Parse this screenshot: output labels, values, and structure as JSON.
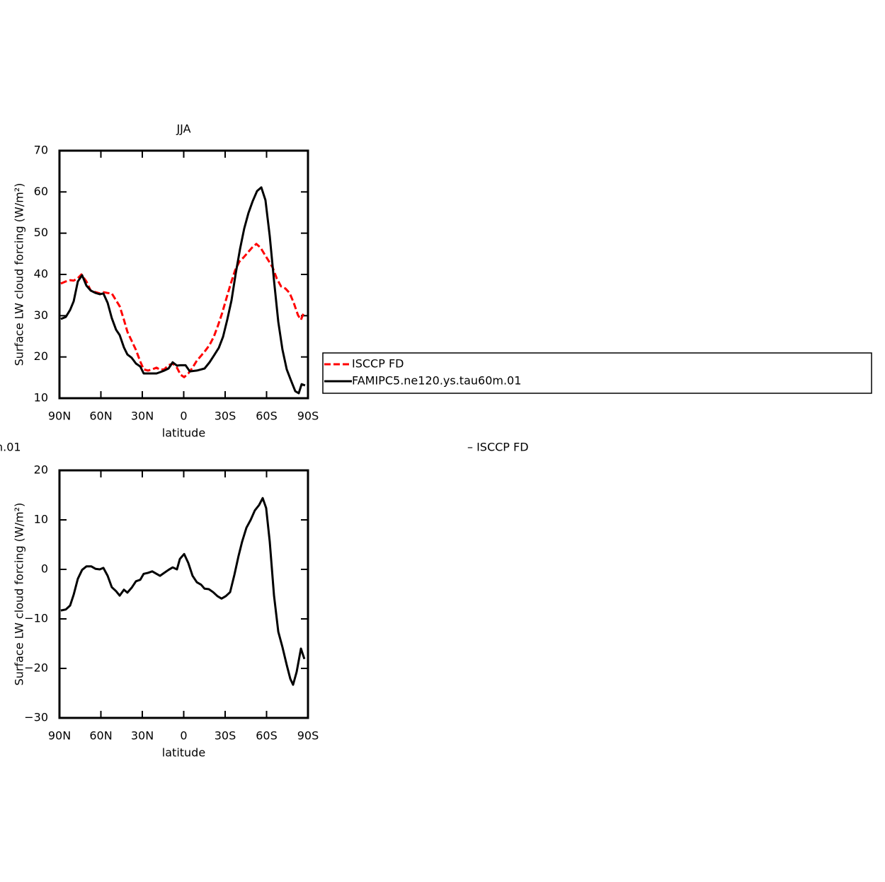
{
  "chart_data": [
    {
      "type": "line",
      "title": "JJA",
      "x_label": "latitude",
      "y_label": "Surface LW cloud forcing (W/m²)",
      "xlim": [
        90,
        -90
      ],
      "ylim": [
        10,
        70
      ],
      "xticks": [
        {
          "value": 90,
          "label": "90N"
        },
        {
          "value": 60,
          "label": "60N"
        },
        {
          "value": 30,
          "label": "30N"
        },
        0,
        {
          "value": -30,
          "label": "30S"
        },
        {
          "value": -60,
          "label": "60S"
        },
        {
          "value": -90,
          "label": "90S"
        }
      ],
      "yticks": [
        10,
        20,
        30,
        40,
        50,
        60,
        70
      ],
      "legend": "right",
      "series": [
        {
          "name": "ISCCP FD",
          "color": "#ff0000",
          "dashed": true,
          "x": [
            89,
            85.4,
            82.3,
            79.7,
            76.7,
            74.1,
            70.5,
            67.4,
            63.8,
            60.8,
            58.2,
            55.1,
            52.1,
            49,
            46.4,
            43.3,
            40.8,
            37.7,
            34.6,
            31.5,
            29,
            25.9,
            22.8,
            19.7,
            17.2,
            14.1,
            11,
            8,
            4.9,
            2.3,
            -0.3,
            -3.3,
            -6.4,
            -9.5,
            -12.6,
            -15.6,
            -18.7,
            -21.8,
            -24.9,
            -27.9,
            -31,
            -34.1,
            -37.2,
            -40.3,
            -43.3,
            -46.4,
            -49.5,
            -52.6,
            -55.6,
            -58.7,
            -61.3,
            -64.4,
            -67.4,
            -70.5,
            -73.6,
            -76.7,
            -79.7,
            -82.8,
            -84.9,
            -87.4
          ],
          "values": [
            37.8,
            38.3,
            38.6,
            38.5,
            39.1,
            40,
            38.3,
            36.1,
            35.7,
            35.4,
            35.7,
            35.5,
            35.4,
            33.7,
            32.3,
            29,
            26.1,
            23.9,
            21.7,
            18.9,
            17,
            16.7,
            17,
            17.4,
            16.9,
            17,
            18,
            18.4,
            17.4,
            15.7,
            15.1,
            16,
            17.4,
            19.1,
            20.3,
            21.5,
            22.9,
            24.9,
            27.7,
            30.7,
            34.3,
            37.8,
            41,
            43.1,
            44.1,
            45.3,
            46.5,
            47.4,
            46.5,
            44.8,
            43.4,
            41.7,
            39,
            37.1,
            36.6,
            35.5,
            33.1,
            30.1,
            29,
            31.1
          ]
        },
        {
          "name": "FAMIPC5.ne120.ys.tau60m.01",
          "color": "#000000",
          "dashed": false,
          "x": [
            89,
            85.4,
            82.3,
            79.7,
            76.7,
            73.6,
            70.5,
            67.4,
            63.8,
            60.8,
            58.2,
            55.1,
            52.1,
            49,
            46.4,
            43.3,
            40.8,
            37.7,
            34.6,
            31.5,
            29,
            25.9,
            22.8,
            19.7,
            17.2,
            14.1,
            11,
            8,
            4.9,
            2.3,
            -1.3,
            -4.4,
            -9.5,
            -15.1,
            -18.7,
            -21.8,
            -25.4,
            -28.5,
            -31.5,
            -34.6,
            -37.7,
            -40.8,
            -43.8,
            -46.9,
            -50,
            -53.1,
            -56.2,
            -59.2,
            -62.3,
            -65.4,
            -68.5,
            -71.5,
            -74.6,
            -77.7,
            -80.8,
            -83.3,
            -85.4,
            -87.9
          ],
          "values": [
            29.2,
            29.7,
            31.4,
            33.5,
            38.3,
            39.8,
            37.3,
            36.1,
            35.5,
            35.2,
            35.4,
            33.1,
            29.4,
            26.6,
            25.3,
            22.3,
            20.6,
            19.8,
            18.4,
            17.7,
            16,
            16,
            16,
            16,
            16.3,
            16.7,
            17.2,
            18.7,
            17.9,
            18,
            18,
            16.5,
            16.7,
            17.2,
            18.7,
            20.3,
            22.2,
            24.9,
            29,
            33.7,
            40.3,
            46.2,
            51.1,
            54.9,
            57.8,
            60.2,
            61.1,
            58,
            49.3,
            38.5,
            28.5,
            21.8,
            17,
            14.3,
            11.7,
            11.2,
            13.4,
            13.1
          ]
        }
      ]
    },
    {
      "type": "line",
      "title_left": "n.01",
      "title_right": "– ISCCP FD",
      "x_label": "latitude",
      "y_label": "Surface LW cloud forcing (W/m²)",
      "xlim": [
        90,
        -90
      ],
      "ylim": [
        -30,
        20
      ],
      "xticks": [
        {
          "value": 90,
          "label": "90N"
        },
        {
          "value": 60,
          "label": "60N"
        },
        {
          "value": 30,
          "label": "30N"
        },
        0,
        {
          "value": -30,
          "label": "30S"
        },
        {
          "value": -60,
          "label": "60S"
        },
        {
          "value": -90,
          "label": "90S"
        }
      ],
      "yticks": [
        {
          "value": -30,
          "label": "−30"
        },
        {
          "value": -20,
          "label": "−20"
        },
        {
          "value": -10,
          "label": "−10"
        },
        0,
        10,
        20
      ],
      "color": "#000000",
      "x": [
        89,
        85.4,
        82.3,
        79.7,
        76.7,
        73.6,
        70.5,
        66.9,
        63.8,
        60.8,
        58.2,
        55.1,
        52.1,
        49,
        46.4,
        43.3,
        40.8,
        37.7,
        34.6,
        31.5,
        29,
        25.9,
        22.8,
        19.7,
        17.2,
        14.1,
        11,
        8,
        4.9,
        2.8,
        -0.3,
        -3.3,
        -6.4,
        -9.5,
        -12.6,
        -15.1,
        -18.2,
        -21.3,
        -24.4,
        -27.4,
        -30.5,
        -33.6,
        -36.7,
        -39.7,
        -42.3,
        -45.4,
        -48.5,
        -51.5,
        -54.6,
        -57.2,
        -59.7,
        -62.3,
        -65.4,
        -68.5,
        -71.5,
        -74.6,
        -77.2,
        -79.2,
        -81.8,
        -84.9,
        -87.4
      ],
      "values": [
        -8.3,
        -8.1,
        -7.3,
        -5.1,
        -1.9,
        -0.1,
        0.6,
        0.6,
        0.1,
        0,
        0.3,
        -1.3,
        -3.6,
        -4.4,
        -5.3,
        -4.1,
        -4.7,
        -3.7,
        -2.4,
        -2.1,
        -0.9,
        -0.7,
        -0.4,
        -0.9,
        -1.3,
        -0.7,
        -0.1,
        0.4,
        0,
        2.1,
        3.1,
        1.3,
        -1.3,
        -2.6,
        -3.1,
        -3.9,
        -4,
        -4.6,
        -5.4,
        -5.9,
        -5.4,
        -4.6,
        -1.1,
        2.7,
        5.6,
        8.4,
        10,
        11.9,
        13,
        14.4,
        12.4,
        5.6,
        -5.3,
        -12.6,
        -15.7,
        -19.3,
        -22.1,
        -23.3,
        -20.7,
        -16,
        -18.1
      ]
    }
  ]
}
